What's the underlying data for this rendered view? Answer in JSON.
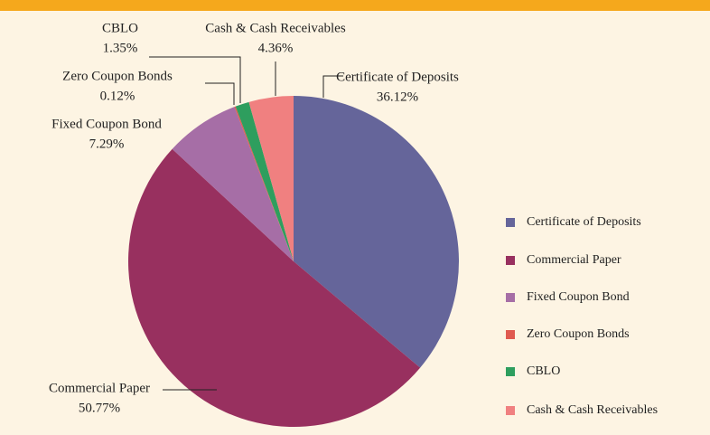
{
  "chart_data": {
    "type": "pie",
    "categories": [
      "Certificate of Deposits",
      "Commercial Paper",
      "Fixed Coupon Bond",
      "Zero Coupon Bonds",
      "CBLO",
      "Cash & Cash Receivables"
    ],
    "values": [
      36.12,
      50.77,
      7.29,
      0.12,
      1.35,
      4.36
    ],
    "value_labels": [
      "36.12%",
      "50.77%",
      "7.29%",
      "0.12%",
      "1.35%",
      "4.36%"
    ],
    "colors": [
      "#65659a",
      "#98305f",
      "#a66ea6",
      "#e05a50",
      "#2e9e5e",
      "#f08080"
    ],
    "legend": "right"
  }
}
